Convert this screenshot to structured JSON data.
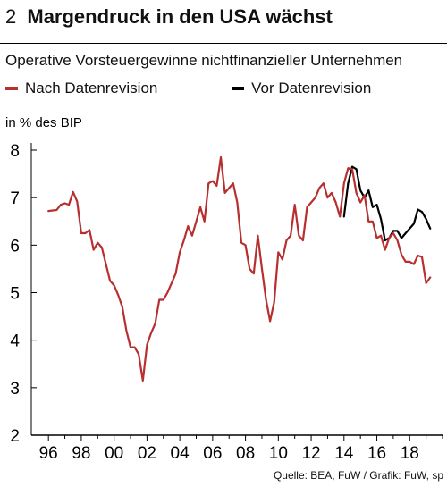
{
  "header": {
    "number": "2",
    "title": "Margendruck in den USA wächst"
  },
  "colors": {
    "revised": "#b72f2f",
    "before": "#000000",
    "axis": "#000000"
  },
  "chart_data": {
    "type": "line",
    "title": "Margendruck in den USA wächst",
    "subtitle": "Operative Vorsteuergewinne nichtfinanzieller Unternehmen",
    "ylabel": "in % des BIP",
    "xlabel": "",
    "xlim": [
      1995.5,
      2020.0
    ],
    "ylim": [
      2,
      8
    ],
    "x_ticks": [
      1996,
      1998,
      2000,
      2002,
      2004,
      2006,
      2008,
      2010,
      2012,
      2014,
      2016,
      2018
    ],
    "x_tick_labels": [
      "96",
      "98",
      "00",
      "02",
      "04",
      "06",
      "08",
      "10",
      "12",
      "14",
      "16",
      "18"
    ],
    "y_ticks": [
      2,
      3,
      4,
      5,
      6,
      7,
      8
    ],
    "y_tick_labels": [
      "2",
      "3",
      "4",
      "5",
      "6",
      "7",
      "8"
    ],
    "grid": false,
    "legend_position": "top",
    "series": [
      {
        "name": "Nach Datenrevision",
        "color": "#b72f2f",
        "x": [
          1996.0,
          1996.25,
          1996.5,
          1996.75,
          1997.0,
          1997.25,
          1997.5,
          1997.75,
          1998.0,
          1998.25,
          1998.5,
          1998.75,
          1999.0,
          1999.25,
          1999.5,
          1999.75,
          2000.0,
          2000.25,
          2000.5,
          2000.75,
          2001.0,
          2001.25,
          2001.5,
          2001.75,
          2002.0,
          2002.25,
          2002.5,
          2002.75,
          2003.0,
          2003.25,
          2003.5,
          2003.75,
          2004.0,
          2004.25,
          2004.5,
          2004.75,
          2005.0,
          2005.25,
          2005.5,
          2005.75,
          2006.0,
          2006.25,
          2006.5,
          2006.75,
          2007.0,
          2007.25,
          2007.5,
          2007.75,
          2008.0,
          2008.25,
          2008.5,
          2008.75,
          2009.0,
          2009.25,
          2009.5,
          2009.75,
          2010.0,
          2010.25,
          2010.5,
          2010.75,
          2011.0,
          2011.25,
          2011.5,
          2011.75,
          2012.0,
          2012.25,
          2012.5,
          2012.75,
          2013.0,
          2013.25,
          2013.5,
          2013.75,
          2014.0,
          2014.25,
          2014.5,
          2014.75,
          2015.0,
          2015.25,
          2015.5,
          2015.75,
          2016.0,
          2016.25,
          2016.5,
          2016.75,
          2017.0,
          2017.25,
          2017.5,
          2017.75,
          2018.0,
          2018.25,
          2018.5,
          2018.75,
          2019.0,
          2019.25
        ],
        "values": [
          6.72,
          6.73,
          6.74,
          6.85,
          6.88,
          6.85,
          7.12,
          6.92,
          6.25,
          6.25,
          6.32,
          5.9,
          6.05,
          5.95,
          5.6,
          5.25,
          5.15,
          4.95,
          4.7,
          4.2,
          3.85,
          3.85,
          3.7,
          3.15,
          3.9,
          4.15,
          4.35,
          4.85,
          4.85,
          5.0,
          5.2,
          5.4,
          5.85,
          6.1,
          6.4,
          6.2,
          6.5,
          6.8,
          6.5,
          7.3,
          7.35,
          7.25,
          7.85,
          7.1,
          7.2,
          7.3,
          6.9,
          6.05,
          6.0,
          5.5,
          5.4,
          6.2,
          5.5,
          4.85,
          4.4,
          4.8,
          5.85,
          5.7,
          6.1,
          6.2,
          6.85,
          6.2,
          6.1,
          6.8,
          6.9,
          7.0,
          7.2,
          7.3,
          7.0,
          7.1,
          6.9,
          6.6,
          7.3,
          7.62,
          7.6,
          7.1,
          6.9,
          7.05,
          6.5,
          6.5,
          6.15,
          6.2,
          5.9,
          6.15,
          6.25,
          6.1,
          5.8,
          5.65,
          5.65,
          5.6,
          5.78,
          5.75,
          5.2,
          5.32
        ]
      },
      {
        "name": "Vor Datenrevision",
        "color": "#000000",
        "x": [
          2014.0,
          2014.25,
          2014.5,
          2014.75,
          2015.0,
          2015.25,
          2015.5,
          2015.75,
          2016.0,
          2016.25,
          2016.5,
          2016.75,
          2017.0,
          2017.25,
          2017.5,
          2017.75,
          2018.0,
          2018.25,
          2018.5,
          2018.75,
          2019.0,
          2019.25
        ],
        "values": [
          6.6,
          7.3,
          7.65,
          7.6,
          7.15,
          7.0,
          7.15,
          6.8,
          6.85,
          6.55,
          6.1,
          6.15,
          6.3,
          6.3,
          6.15,
          6.25,
          6.35,
          6.45,
          6.75,
          6.7,
          6.55,
          6.35
        ]
      }
    ]
  },
  "footer": {
    "source": "Quelle: BEA, FuW / Grafik: FuW, sp"
  }
}
